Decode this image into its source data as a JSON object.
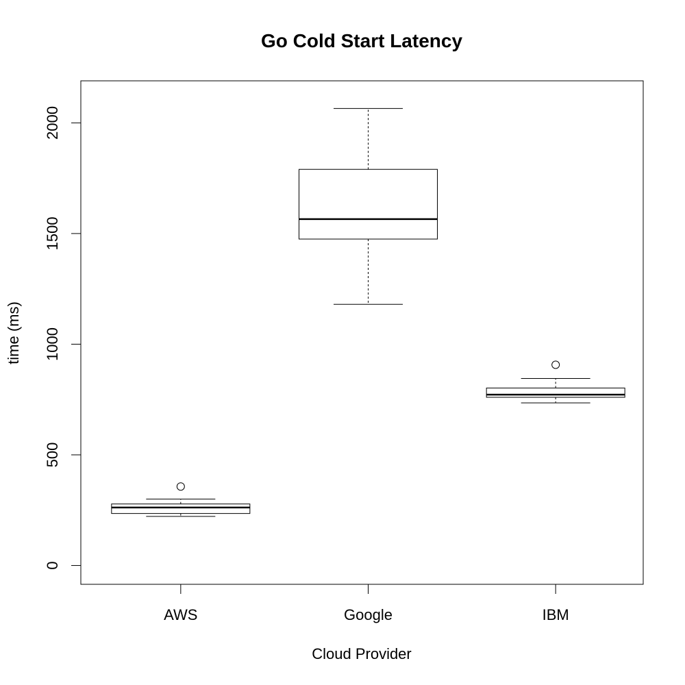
{
  "chart_data": {
    "type": "boxplot",
    "title": "Go Cold Start Latency",
    "xlabel": "Cloud Provider",
    "ylabel": "time (ms)",
    "ylim": [
      -85,
      2190
    ],
    "yticks": [
      0,
      500,
      1000,
      1500,
      2000
    ],
    "grid": false,
    "categories": [
      "AWS",
      "Google",
      "IBM"
    ],
    "boxes": [
      {
        "name": "AWS",
        "whisker_low": 222,
        "q1": 235,
        "median": 262,
        "q3": 278,
        "whisker_high": 300,
        "outliers": [
          357
        ]
      },
      {
        "name": "Google",
        "whisker_low": 1180,
        "q1": 1475,
        "median": 1565,
        "q3": 1790,
        "whisker_high": 2065,
        "outliers": []
      },
      {
        "name": "IBM",
        "whisker_low": 735,
        "q1": 760,
        "median": 772,
        "q3": 802,
        "whisker_high": 845,
        "outliers": [
          907
        ]
      }
    ]
  }
}
